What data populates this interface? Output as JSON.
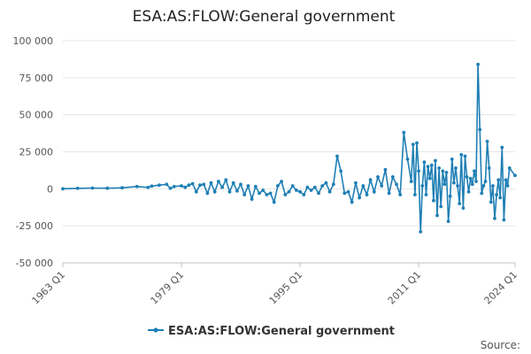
{
  "chart_data": {
    "type": "line",
    "title": "ESA:AS:FLOW:General government",
    "xlabel": "",
    "ylabel": "",
    "ylim": [
      -50000,
      100000
    ],
    "y_ticks": [
      "100 000",
      "75 000",
      "50 000",
      "25 000",
      "0",
      "-25 000",
      "-50 000"
    ],
    "y_tick_values": [
      100000,
      75000,
      50000,
      25000,
      0,
      -25000,
      -50000
    ],
    "x_ticks": [
      "1963 Q1",
      "1979 Q1",
      "1995 Q1",
      "2011 Q1",
      "2024 Q1"
    ],
    "legend_position": "bottom",
    "grid": true,
    "colors": {
      "series": "#1f7fb5"
    },
    "series": [
      {
        "name": "ESA:AS:FLOW:General government",
        "points": [
          [
            "1963 Q1",
            0
          ],
          [
            "1965 Q1",
            300
          ],
          [
            "1967 Q1",
            500
          ],
          [
            "1969 Q1",
            400
          ],
          [
            "1971 Q1",
            700
          ],
          [
            "1973 Q1",
            1500
          ],
          [
            "1974 Q3",
            900
          ],
          [
            "1975 Q1",
            1800
          ],
          [
            "1976 Q1",
            2500
          ],
          [
            "1977 Q1",
            3000
          ],
          [
            "1977 Q3",
            300
          ],
          [
            "1978 Q1",
            1500
          ],
          [
            "1979 Q1",
            2000
          ],
          [
            "1979 Q3",
            1000
          ],
          [
            "1980 Q1",
            2500
          ],
          [
            "1980 Q3",
            3500
          ],
          [
            "1981 Q1",
            -2000
          ],
          [
            "1981 Q3",
            2500
          ],
          [
            "1982 Q1",
            3000
          ],
          [
            "1982 Q3",
            -3000
          ],
          [
            "1983 Q1",
            4000
          ],
          [
            "1983 Q3",
            -2000
          ],
          [
            "1984 Q1",
            5000
          ],
          [
            "1984 Q3",
            1000
          ],
          [
            "1985 Q1",
            6000
          ],
          [
            "1985 Q3",
            -2000
          ],
          [
            "1986 Q1",
            4000
          ],
          [
            "1986 Q3",
            -1500
          ],
          [
            "1987 Q1",
            3000
          ],
          [
            "1987 Q3",
            -4000
          ],
          [
            "1988 Q1",
            2000
          ],
          [
            "1988 Q3",
            -7000
          ],
          [
            "1989 Q1",
            1500
          ],
          [
            "1989 Q3",
            -3000
          ],
          [
            "1990 Q1",
            -1000
          ],
          [
            "1990 Q3",
            -4000
          ],
          [
            "1991 Q1",
            -3000
          ],
          [
            "1991 Q3",
            -9000
          ],
          [
            "1992 Q1",
            2000
          ],
          [
            "1992 Q3",
            5000
          ],
          [
            "1993 Q1",
            -4000
          ],
          [
            "1993 Q3",
            -2000
          ],
          [
            "1994 Q1",
            2000
          ],
          [
            "1994 Q3",
            -1000
          ],
          [
            "1995 Q1",
            -2000
          ],
          [
            "1995 Q3",
            -4000
          ],
          [
            "1996 Q1",
            1000
          ],
          [
            "1996 Q3",
            -1000
          ],
          [
            "1997 Q1",
            1000
          ],
          [
            "1997 Q3",
            -3000
          ],
          [
            "1998 Q1",
            2000
          ],
          [
            "1998 Q3",
            4000
          ],
          [
            "1999 Q1",
            -2000
          ],
          [
            "1999 Q3",
            3000
          ],
          [
            "2000 Q1",
            22000
          ],
          [
            "2000 Q3",
            12000
          ],
          [
            "2001 Q1",
            -3000
          ],
          [
            "2001 Q3",
            -2000
          ],
          [
            "2002 Q1",
            -9000
          ],
          [
            "2002 Q3",
            4000
          ],
          [
            "2003 Q1",
            -6000
          ],
          [
            "2003 Q3",
            2000
          ],
          [
            "2004 Q1",
            -4000
          ],
          [
            "2004 Q3",
            6000
          ],
          [
            "2005 Q1",
            -2000
          ],
          [
            "2005 Q3",
            8000
          ],
          [
            "2006 Q1",
            2000
          ],
          [
            "2006 Q3",
            13000
          ],
          [
            "2007 Q1",
            -3000
          ],
          [
            "2007 Q3",
            8000
          ],
          [
            "2008 Q1",
            3000
          ],
          [
            "2008 Q3",
            -4000
          ],
          [
            "2009 Q1",
            38000
          ],
          [
            "2009 Q3",
            20000
          ],
          [
            "2010 Q1",
            5000
          ],
          [
            "2010 Q2",
            30000
          ],
          [
            "2010 Q3",
            -4000
          ],
          [
            "2010 Q4",
            31000
          ],
          [
            "2011 Q1",
            12000
          ],
          [
            "2011 Q2",
            -29000
          ],
          [
            "2011 Q3",
            2000
          ],
          [
            "2011 Q4",
            18000
          ],
          [
            "2012 Q1",
            -4000
          ],
          [
            "2012 Q2",
            15000
          ],
          [
            "2012 Q3",
            7000
          ],
          [
            "2012 Q4",
            16000
          ],
          [
            "2013 Q1",
            -8000
          ],
          [
            "2013 Q2",
            19000
          ],
          [
            "2013 Q3",
            -18000
          ],
          [
            "2013 Q4",
            14000
          ],
          [
            "2014 Q1",
            -12000
          ],
          [
            "2014 Q2",
            12000
          ],
          [
            "2014 Q3",
            3000
          ],
          [
            "2014 Q4",
            11000
          ],
          [
            "2015 Q1",
            -22000
          ],
          [
            "2015 Q2",
            -5000
          ],
          [
            "2015 Q3",
            20000
          ],
          [
            "2015 Q4",
            4000
          ],
          [
            "2016 Q1",
            14000
          ],
          [
            "2016 Q2",
            2000
          ],
          [
            "2016 Q3",
            -10000
          ],
          [
            "2016 Q4",
            23000
          ],
          [
            "2017 Q1",
            -13000
          ],
          [
            "2017 Q2",
            22000
          ],
          [
            "2017 Q3",
            8000
          ],
          [
            "2017 Q4",
            -2000
          ],
          [
            "2018 Q1",
            7000
          ],
          [
            "2018 Q2",
            3000
          ],
          [
            "2018 Q3",
            12000
          ],
          [
            "2018 Q4",
            5000
          ],
          [
            "2019 Q1",
            84000
          ],
          [
            "2019 Q2",
            40000
          ],
          [
            "2019 Q3",
            -3000
          ],
          [
            "2019 Q4",
            2000
          ],
          [
            "2020 Q1",
            5000
          ],
          [
            "2020 Q2",
            32000
          ],
          [
            "2020 Q3",
            14000
          ],
          [
            "2020 Q4",
            -9000
          ],
          [
            "2021 Q1",
            2000
          ],
          [
            "2021 Q2",
            -20000
          ],
          [
            "2021 Q3",
            -4000
          ],
          [
            "2021 Q4",
            6000
          ],
          [
            "2022 Q1",
            -6000
          ],
          [
            "2022 Q2",
            28000
          ],
          [
            "2022 Q3",
            -21000
          ],
          [
            "2022 Q4",
            6000
          ],
          [
            "2023 Q1",
            2000
          ],
          [
            "2023 Q2",
            14000
          ],
          [
            "2024 Q1",
            9000
          ]
        ]
      }
    ]
  },
  "source_label": "Source:"
}
